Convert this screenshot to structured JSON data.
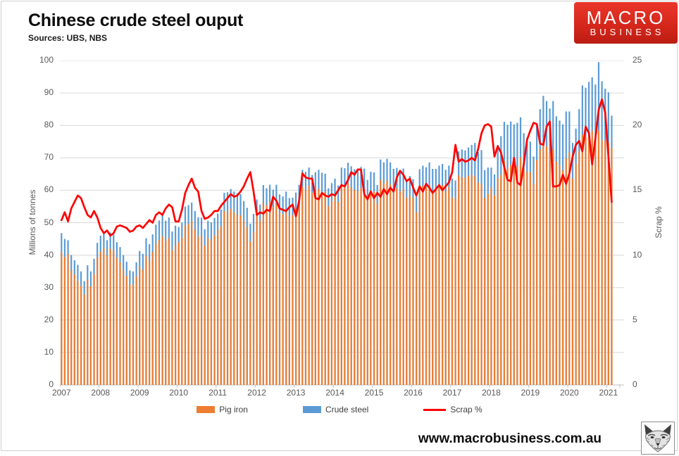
{
  "header": {
    "title": "Chinese crude steel ouput",
    "subtitle": "Sources: UBS, NBS"
  },
  "logo": {
    "line1": "MACRO",
    "line2": "BUSINESS",
    "bg_color": "#d6271c"
  },
  "footer": {
    "website": "www.macrobusiness.com.au",
    "logo_icon": "wolf-sketch-icon"
  },
  "chart_data": {
    "type": "bar",
    "subtype": "overlapped-bars-with-line",
    "title": "Chinese crude steel ouput",
    "x_unit": "month",
    "x_start": "2007-01",
    "x_end": "2021-02",
    "x_tick_labels": [
      "2007",
      "2008",
      "2009",
      "2010",
      "2011",
      "2012",
      "2013",
      "2014",
      "2015",
      "2016",
      "2017",
      "2018",
      "2019",
      "2020",
      "2021"
    ],
    "y_left": {
      "label": "Millions of tonnes",
      "min": 0,
      "max": 100,
      "ticks": [
        0,
        10,
        20,
        30,
        40,
        50,
        60,
        70,
        80,
        90,
        100
      ]
    },
    "y_right": {
      "label": "Scrap %",
      "min": 0,
      "max": 25,
      "ticks": [
        0,
        5,
        10,
        15,
        20,
        25
      ]
    },
    "grid": true,
    "grid_color": "#d9d9d9",
    "axis_line_color": "#bfbfbf",
    "axis_text_color": "#595959",
    "legend_position": "bottom",
    "series": [
      {
        "name": "Crude steel",
        "type": "bar",
        "axis": "left",
        "color": "#5B9BD5",
        "values": [
          46.8,
          45.0,
          44.6,
          40.0,
          38.4,
          37.0,
          35.0,
          32.0,
          36.9,
          35.0,
          38.9,
          43.8,
          46.0,
          47.2,
          44.6,
          47.0,
          46.4,
          44.0,
          42.5,
          40.0,
          38.0,
          35.3,
          35.0,
          37.8,
          41.3,
          40.4,
          45.2,
          43.4,
          46.4,
          49.4,
          50.7,
          52.3,
          50.6,
          51.6,
          47.3,
          49.1,
          48.7,
          50.1,
          55.0,
          55.4,
          56.2,
          53.6,
          51.7,
          51.6,
          48.0,
          50.6,
          50.1,
          51.5,
          52.8,
          54.1,
          59.2,
          59.4,
          60.4,
          59.6,
          59.1,
          58.8,
          56.7,
          54.6,
          49.7,
          52.7,
          57.2,
          55.6,
          61.6,
          60.6,
          61.7,
          60.2,
          61.7,
          58.7,
          58.1,
          59.6,
          57.6,
          57.7,
          59.3,
          61.7,
          66.3,
          65.7,
          67.0,
          64.7,
          65.6,
          66.3,
          65.4,
          65.1,
          60.6,
          62.2,
          63.6,
          61.5,
          67.0,
          66.8,
          68.5,
          67.4,
          66.5,
          66.2,
          67.2,
          66.7,
          63.2,
          65.7,
          65.5,
          61.6,
          69.5,
          68.6,
          69.7,
          68.6,
          66.6,
          66.9,
          66.1,
          66.7,
          63.3,
          64.4,
          63.4,
          58.5,
          66.5,
          67.6,
          67.1,
          68.6,
          66.6,
          66.6,
          67.6,
          68.1,
          66.3,
          67.6,
          63.6,
          63.0,
          72.0,
          72.6,
          72.3,
          73.2,
          74.0,
          74.6,
          71.8,
          72.4,
          66.2,
          67.0,
          67.0,
          64.9,
          74.0,
          76.7,
          81.1,
          80.2,
          81.2,
          80.3,
          80.8,
          82.5,
          77.6,
          76.1,
          75.0,
          70.4,
          80.3,
          85.0,
          89.1,
          87.5,
          85.2,
          87.5,
          82.8,
          81.5,
          80.3,
          84.3,
          84.3,
          74.6,
          79.0,
          85.0,
          92.3,
          91.6,
          93.4,
          94.8,
          92.6,
          99.5,
          93.6,
          91.3,
          90.2,
          83.0,
          null,
          null
        ]
      },
      {
        "name": "Pig iron",
        "type": "bar",
        "axis": "left",
        "color": "#ED7D31",
        "values": [
          40.9,
          39.4,
          40.3,
          35.4,
          34.0,
          32.1,
          30.6,
          27.9,
          32.3,
          30.4,
          34.1,
          39.3,
          41.0,
          42.2,
          39.9,
          42.0,
          41.5,
          39.2,
          37.8,
          35.4,
          33.6,
          31.0,
          30.8,
          33.4,
          36.4,
          35.5,
          39.8,
          38.3,
          41.0,
          43.4,
          44.7,
          45.9,
          44.4,
          45.3,
          41.5,
          43.1,
          44.1,
          45.3,
          49.2,
          49.6,
          50.6,
          47.9,
          45.7,
          46.1,
          42.9,
          45.2,
          44.8,
          46.1,
          47.8,
          48.9,
          53.6,
          53.2,
          54.3,
          53.3,
          52.6,
          52.3,
          50.6,
          48.6,
          44.2,
          47.1,
          52.5,
          50.6,
          56.1,
          55.4,
          56.6,
          54.9,
          55.7,
          53.1,
          52.6,
          54.1,
          52.1,
          52.4,
          54.3,
          56.2,
          61.0,
          60.1,
          61.4,
          59.2,
          59.7,
          60.4,
          58.9,
          59.6,
          55.1,
          56.6,
          58.6,
          56.4,
          61.2,
          60.8,
          62.2,
          60.9,
          60.1,
          59.7,
          60.7,
          60.3,
          57.2,
          59.3,
          59.6,
          55.9,
          63.2,
          62.1,
          63.1,
          61.8,
          60.0,
          60.6,
          59.6,
          60.4,
          57.7,
          58.4,
          57.7,
          53.2,
          60.6,
          61.4,
          60.9,
          61.6,
          59.7,
          60.4,
          60.9,
          61.6,
          59.8,
          61.0,
          57.9,
          57.4,
          64.6,
          64.1,
          63.8,
          64.4,
          64.8,
          64.3,
          62.4,
          61.9,
          57.6,
          58.8,
          60.8,
          58.5,
          63.7,
          64.8,
          69.1,
          66.9,
          67.8,
          68.7,
          67.4,
          70.1,
          66.7,
          65.6,
          65.6,
          61.9,
          69.4,
          72.6,
          74.6,
          73.6,
          71.6,
          72.7,
          68.9,
          67.7,
          66.1,
          69.8,
          71.7,
          63.6,
          68.1,
          72.1,
          77.1,
          76.4,
          78.0,
          78.4,
          76.6,
          78.4,
          75.6,
          75.2,
          74.6,
          73.1,
          null,
          null
        ]
      },
      {
        "name": "Scrap %",
        "type": "line",
        "axis": "right",
        "color": "#FF0000",
        "values": [
          12.7,
          13.3,
          12.6,
          13.6,
          14.1,
          14.6,
          14.4,
          13.7,
          13.1,
          12.9,
          13.4,
          12.9,
          12.1,
          11.7,
          11.9,
          11.5,
          11.7,
          12.2,
          12.3,
          12.2,
          12.1,
          11.8,
          11.9,
          12.2,
          12.3,
          12.1,
          12.4,
          12.7,
          12.5,
          13.1,
          13.3,
          13.1,
          13.6,
          13.9,
          13.7,
          12.6,
          12.6,
          13.5,
          14.8,
          15.4,
          15.9,
          15.2,
          14.9,
          13.4,
          12.8,
          12.9,
          13.1,
          13.4,
          13.4,
          13.8,
          14.1,
          14.4,
          14.7,
          14.5,
          14.6,
          14.9,
          15.3,
          15.9,
          16.4,
          14.9,
          13.1,
          13.3,
          13.2,
          13.5,
          13.4,
          14.5,
          14.2,
          13.6,
          13.5,
          13.4,
          13.7,
          13.9,
          13.0,
          14.2,
          16.3,
          16.0,
          15.9,
          15.9,
          14.4,
          14.3,
          14.8,
          14.6,
          14.5,
          14.7,
          14.6,
          15.0,
          15.4,
          15.3,
          15.8,
          16.4,
          16.2,
          16.6,
          16.6,
          14.7,
          14.3,
          14.9,
          14.4,
          14.8,
          14.5,
          15.1,
          14.7,
          15.2,
          14.9,
          16.0,
          16.5,
          16.2,
          15.7,
          15.9,
          15.2,
          14.6,
          15.3,
          14.9,
          15.5,
          15.2,
          14.8,
          15.1,
          15.4,
          15.0,
          15.3,
          15.6,
          16.4,
          18.5,
          17.2,
          17.4,
          17.2,
          17.3,
          17.5,
          17.3,
          18.2,
          19.4,
          20.0,
          20.1,
          19.9,
          17.6,
          18.4,
          17.9,
          16.8,
          15.8,
          15.7,
          17.5,
          15.6,
          15.4,
          17.0,
          18.9,
          19.6,
          20.2,
          20.1,
          18.6,
          18.5,
          19.9,
          20.3,
          15.3,
          15.3,
          15.4,
          16.2,
          15.5,
          16.3,
          17.6,
          18.5,
          18.8,
          18.0,
          19.9,
          19.4,
          17.0,
          19.0,
          21.2,
          22.0,
          21.0,
          17.6,
          14.1,
          null,
          null
        ]
      }
    ]
  }
}
